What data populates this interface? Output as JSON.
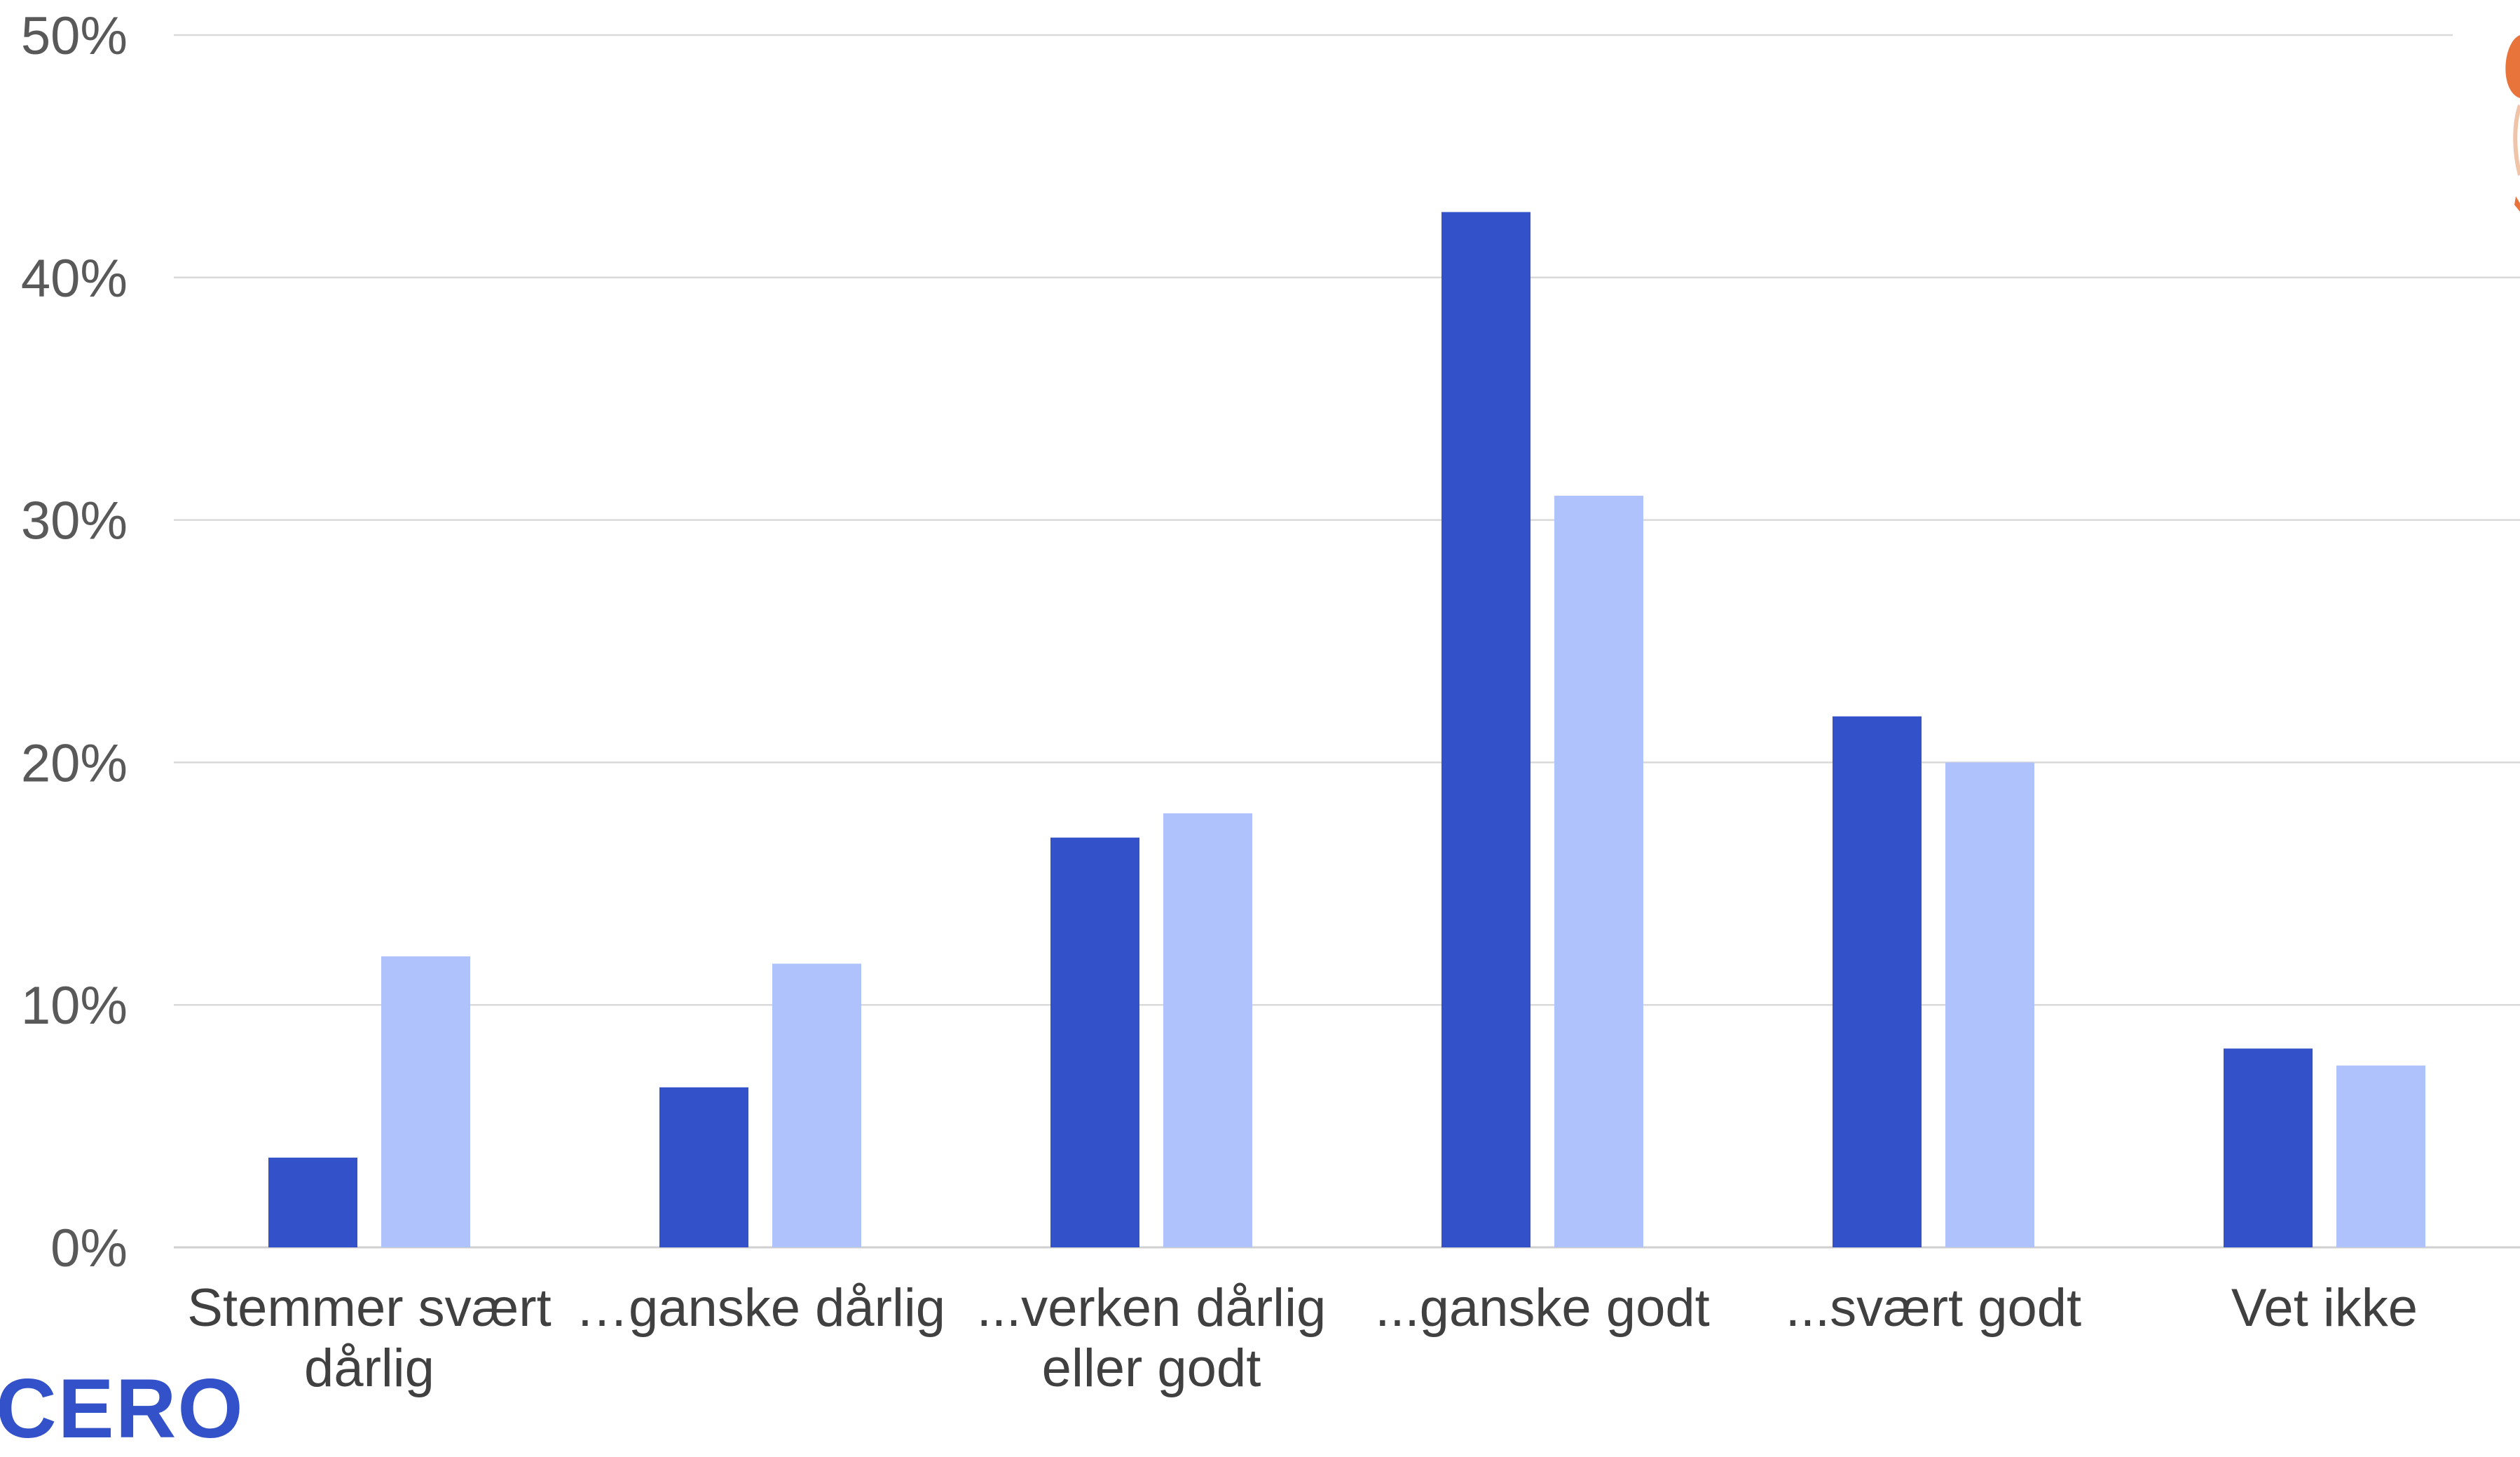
{
  "chart_data": {
    "type": "bar",
    "categories": [
      "Stemmer svært\ndårlig",
      "…ganske dårlig",
      "...verken dårlig\neller godt",
      "...ganske godt",
      "...svært godt",
      "Vet ikke"
    ],
    "series": [
      {
        "values": [
          3.7,
          6.6,
          16.9,
          42.7,
          21.9,
          8.2
        ],
        "color": "#3351c8"
      },
      {
        "values": [
          12.0,
          11.7,
          17.9,
          31.0,
          20.0,
          7.5
        ],
        "color": "#b0c2fc"
      }
    ],
    "yticks": [
      "0%",
      "10%",
      "20%",
      "30%",
      "40%",
      "50%"
    ],
    "ylim": [
      0,
      50
    ],
    "grid": true,
    "legend": "none"
  },
  "logo": {
    "text": "CERO",
    "color": "#3351c8"
  },
  "colors": {
    "accent": "#e8743b"
  }
}
